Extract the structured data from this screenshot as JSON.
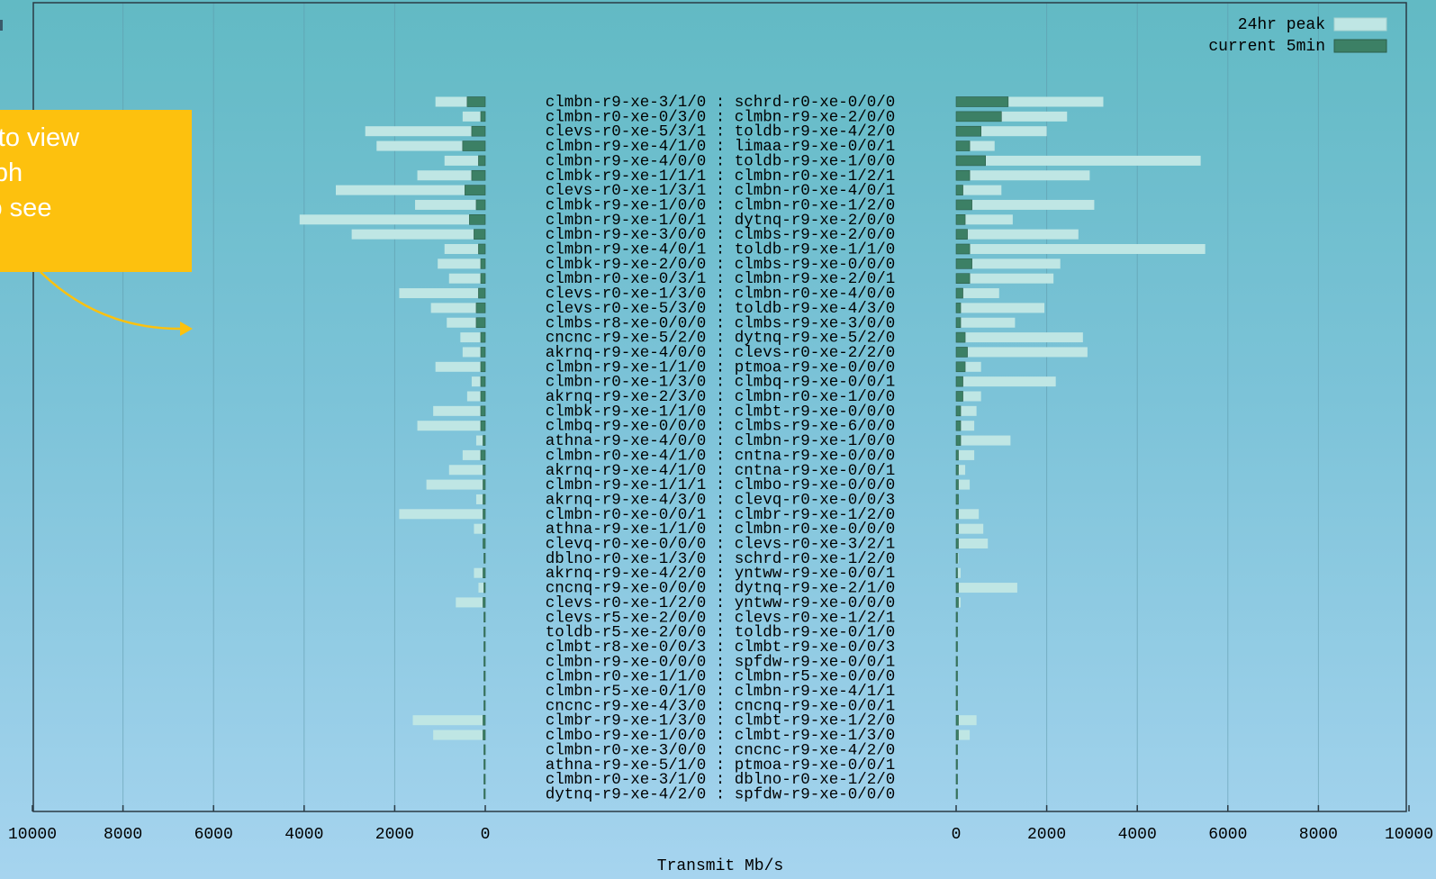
{
  "chart_data": {
    "type": "bar",
    "orientation": "horizontal-mirrored",
    "xlabel": "Transmit Mb/s",
    "x_ticks": [
      "10000",
      "8000",
      "6000",
      "4000",
      "2000",
      "0"
    ],
    "xlim": [
      0,
      10000
    ],
    "grid": true,
    "legend_position": "top-right",
    "series": [
      {
        "name": "24hr peak",
        "color": "#bfe6e4"
      },
      {
        "name": "current 5min",
        "color": "#3c8065"
      }
    ],
    "links": [
      {
        "a": "clmbn-r9-xe-3/1/0",
        "b": "schrd-r0-xe-0/0/0",
        "left_peak": 1100,
        "left_cur": 400,
        "right_peak": 3250,
        "right_cur": 1150
      },
      {
        "a": "clmbn-r0-xe-0/3/0",
        "b": "clmbn-r9-xe-2/0/0",
        "left_peak": 500,
        "left_cur": 100,
        "right_peak": 2450,
        "right_cur": 1000
      },
      {
        "a": "clevs-r0-xe-5/3/1",
        "b": "toldb-r9-xe-4/2/0",
        "left_peak": 2650,
        "left_cur": 300,
        "right_peak": 2000,
        "right_cur": 550
      },
      {
        "a": "clmbn-r9-xe-4/1/0",
        "b": "limaa-r9-xe-0/0/1",
        "left_peak": 2400,
        "left_cur": 500,
        "right_peak": 850,
        "right_cur": 300
      },
      {
        "a": "clmbn-r9-xe-4/0/0",
        "b": "toldb-r9-xe-1/0/0",
        "left_peak": 900,
        "left_cur": 150,
        "right_peak": 5400,
        "right_cur": 650
      },
      {
        "a": "clmbk-r9-xe-1/1/1",
        "b": "clmbn-r0-xe-1/2/1",
        "left_peak": 1500,
        "left_cur": 300,
        "right_peak": 2950,
        "right_cur": 300
      },
      {
        "a": "clevs-r0-xe-1/3/1",
        "b": "clmbn-r0-xe-4/0/1",
        "left_peak": 3300,
        "left_cur": 450,
        "right_peak": 1000,
        "right_cur": 150
      },
      {
        "a": "clmbk-r9-xe-1/0/0",
        "b": "clmbn-r0-xe-1/2/0",
        "left_peak": 1550,
        "left_cur": 200,
        "right_peak": 3050,
        "right_cur": 350
      },
      {
        "a": "clmbn-r9-xe-1/0/1",
        "b": "dytnq-r9-xe-2/0/0",
        "left_peak": 4100,
        "left_cur": 350,
        "right_peak": 1250,
        "right_cur": 200
      },
      {
        "a": "clmbn-r9-xe-3/0/0",
        "b": "clmbs-r9-xe-2/0/0",
        "left_peak": 2950,
        "left_cur": 250,
        "right_peak": 2700,
        "right_cur": 250
      },
      {
        "a": "clmbn-r9-xe-4/0/1",
        "b": "toldb-r9-xe-1/1/0",
        "left_peak": 900,
        "left_cur": 150,
        "right_peak": 5500,
        "right_cur": 300
      },
      {
        "a": "clmbk-r9-xe-2/0/0",
        "b": "clmbs-r9-xe-0/0/0",
        "left_peak": 1050,
        "left_cur": 100,
        "right_peak": 2300,
        "right_cur": 350
      },
      {
        "a": "clmbn-r0-xe-0/3/1",
        "b": "clmbn-r9-xe-2/0/1",
        "left_peak": 800,
        "left_cur": 100,
        "right_peak": 2150,
        "right_cur": 300
      },
      {
        "a": "clevs-r0-xe-1/3/0",
        "b": "clmbn-r0-xe-4/0/0",
        "left_peak": 1900,
        "left_cur": 150,
        "right_peak": 950,
        "right_cur": 150
      },
      {
        "a": "clevs-r0-xe-5/3/0",
        "b": "toldb-r9-xe-4/3/0",
        "left_peak": 1200,
        "left_cur": 200,
        "right_peak": 1950,
        "right_cur": 100
      },
      {
        "a": "clmbs-r8-xe-0/0/0",
        "b": "clmbs-r9-xe-3/0/0",
        "left_peak": 850,
        "left_cur": 200,
        "right_peak": 1300,
        "right_cur": 100
      },
      {
        "a": "cncnc-r9-xe-5/2/0",
        "b": "dytnq-r9-xe-5/2/0",
        "left_peak": 550,
        "left_cur": 100,
        "right_peak": 2800,
        "right_cur": 200
      },
      {
        "a": "akrnq-r9-xe-4/0/0",
        "b": "clevs-r0-xe-2/2/0",
        "left_peak": 500,
        "left_cur": 100,
        "right_peak": 2900,
        "right_cur": 250
      },
      {
        "a": "clmbn-r9-xe-1/1/0",
        "b": "ptmoa-r9-xe-0/0/0",
        "left_peak": 1100,
        "left_cur": 100,
        "right_peak": 550,
        "right_cur": 200
      },
      {
        "a": "clmbn-r0-xe-1/3/0",
        "b": "clmbq-r9-xe-0/0/1",
        "left_peak": 300,
        "left_cur": 100,
        "right_peak": 2200,
        "right_cur": 150
      },
      {
        "a": "akrnq-r9-xe-2/3/0",
        "b": "clmbn-r0-xe-1/0/0",
        "left_peak": 400,
        "left_cur": 100,
        "right_peak": 550,
        "right_cur": 150
      },
      {
        "a": "clmbk-r9-xe-1/1/0",
        "b": "clmbt-r9-xe-0/0/0",
        "left_peak": 1150,
        "left_cur": 100,
        "right_peak": 450,
        "right_cur": 100
      },
      {
        "a": "clmbq-r9-xe-0/0/0",
        "b": "clmbs-r9-xe-6/0/0",
        "left_peak": 1500,
        "left_cur": 100,
        "right_peak": 400,
        "right_cur": 100
      },
      {
        "a": "athna-r9-xe-4/0/0",
        "b": "clmbn-r9-xe-1/0/0",
        "left_peak": 200,
        "left_cur": 50,
        "right_peak": 1200,
        "right_cur": 100
      },
      {
        "a": "clmbn-r0-xe-4/1/0",
        "b": "cntna-r9-xe-0/0/0",
        "left_peak": 500,
        "left_cur": 100,
        "right_peak": 400,
        "right_cur": 50
      },
      {
        "a": "akrnq-r9-xe-4/1/0",
        "b": "cntna-r9-xe-0/0/1",
        "left_peak": 800,
        "left_cur": 50,
        "right_peak": 200,
        "right_cur": 50
      },
      {
        "a": "clmbn-r9-xe-1/1/1",
        "b": "clmbo-r9-xe-0/0/0",
        "left_peak": 1300,
        "left_cur": 50,
        "right_peak": 300,
        "right_cur": 50
      },
      {
        "a": "akrnq-r9-xe-4/3/0",
        "b": "clevq-r0-xe-0/0/3",
        "left_peak": 200,
        "left_cur": 50,
        "right_peak": 50,
        "right_cur": 50
      },
      {
        "a": "clmbn-r0-xe-0/0/1",
        "b": "clmbr-r9-xe-1/2/0",
        "left_peak": 1900,
        "left_cur": 50,
        "right_peak": 500,
        "right_cur": 50
      },
      {
        "a": "athna-r9-xe-1/1/0",
        "b": "clmbn-r0-xe-0/0/0",
        "left_peak": 250,
        "left_cur": 50,
        "right_peak": 600,
        "right_cur": 50
      },
      {
        "a": "clevq-r0-xe-0/0/0",
        "b": "clevs-r0-xe-3/2/1",
        "left_peak": 50,
        "left_cur": 50,
        "right_peak": 700,
        "right_cur": 50
      },
      {
        "a": "dblno-r0-xe-1/3/0",
        "b": "schrd-r0-xe-1/2/0",
        "left_peak": 0,
        "left_cur": 0,
        "right_peak": 50,
        "right_cur": 0
      },
      {
        "a": "akrnq-r9-xe-4/2/0",
        "b": "yntww-r9-xe-0/0/1",
        "left_peak": 250,
        "left_cur": 50,
        "right_peak": 100,
        "right_cur": 0
      },
      {
        "a": "cncnq-r9-xe-0/0/0",
        "b": "dytnq-r9-xe-2/1/0",
        "left_peak": 150,
        "left_cur": 0,
        "right_peak": 1350,
        "right_cur": 50
      },
      {
        "a": "clevs-r0-xe-1/2/0",
        "b": "yntww-r9-xe-0/0/0",
        "left_peak": 650,
        "left_cur": 50,
        "right_peak": 100,
        "right_cur": 50
      },
      {
        "a": "clevs-r5-xe-2/0/0",
        "b": "clevs-r0-xe-1/2/1",
        "left_peak": 0,
        "left_cur": 0,
        "right_peak": 0,
        "right_cur": 0
      },
      {
        "a": "toldb-r5-xe-2/0/0",
        "b": "toldb-r9-xe-0/1/0",
        "left_peak": 0,
        "left_cur": 0,
        "right_peak": 0,
        "right_cur": 0
      },
      {
        "a": "clmbt-r8-xe-0/0/3",
        "b": "clmbt-r9-xe-0/0/3",
        "left_peak": 0,
        "left_cur": 0,
        "right_peak": 0,
        "right_cur": 0
      },
      {
        "a": "clmbn-r9-xe-0/0/0",
        "b": "spfdw-r9-xe-0/0/1",
        "left_peak": 0,
        "left_cur": 0,
        "right_peak": 0,
        "right_cur": 0
      },
      {
        "a": "clmbn-r0-xe-1/1/0",
        "b": "clmbn-r5-xe-0/0/0",
        "left_peak": 0,
        "left_cur": 0,
        "right_peak": 0,
        "right_cur": 0
      },
      {
        "a": "clmbn-r5-xe-0/1/0",
        "b": "clmbn-r9-xe-4/1/1",
        "left_peak": 0,
        "left_cur": 0,
        "right_peak": 0,
        "right_cur": 0
      },
      {
        "a": "cncnc-r9-xe-4/3/0",
        "b": "cncnq-r9-xe-0/0/1",
        "left_peak": 0,
        "left_cur": 0,
        "right_peak": 0,
        "right_cur": 0
      },
      {
        "a": "clmbr-r9-xe-1/3/0",
        "b": "clmbt-r9-xe-1/2/0",
        "left_peak": 1600,
        "left_cur": 50,
        "right_peak": 450,
        "right_cur": 50
      },
      {
        "a": "clmbo-r9-xe-1/0/0",
        "b": "clmbt-r9-xe-1/3/0",
        "left_peak": 1150,
        "left_cur": 50,
        "right_peak": 300,
        "right_cur": 50
      },
      {
        "a": "clmbn-r0-xe-3/0/0",
        "b": "cncnc-r9-xe-4/2/0",
        "left_peak": 0,
        "left_cur": 0,
        "right_peak": 0,
        "right_cur": 0
      },
      {
        "a": "athna-r9-xe-5/1/0",
        "b": "ptmoa-r9-xe-0/0/1",
        "left_peak": 0,
        "left_cur": 0,
        "right_peak": 0,
        "right_cur": 0
      },
      {
        "a": "clmbn-r0-xe-3/1/0",
        "b": "dblno-r0-xe-1/2/0",
        "left_peak": 0,
        "left_cur": 0,
        "right_peak": 0,
        "right_cur": 0
      },
      {
        "a": "dytnq-r9-xe-4/2/0",
        "b": "spfdw-r9-xe-0/0/0",
        "left_peak": 0,
        "left_cur": 0,
        "right_peak": 0,
        "right_cur": 0
      }
    ]
  },
  "callout": {
    "text": "a link to view\ns Graph\naph to see\nory",
    "background": "#fdc10e",
    "arrow_color": "#fdc10e"
  }
}
